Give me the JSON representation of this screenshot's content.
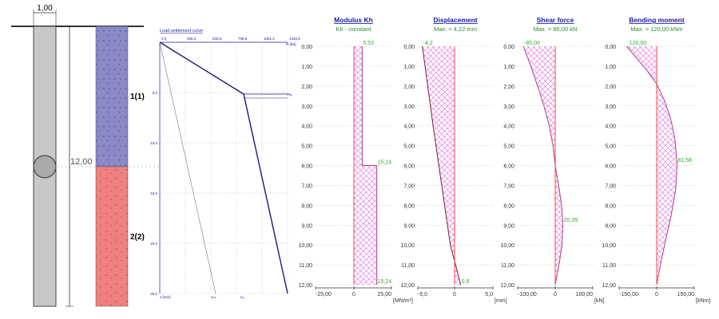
{
  "pile": {
    "diameter_label": "1,00",
    "length_label": "12,00"
  },
  "layers": [
    {
      "label": "1(1)",
      "color": "#8a8ac6"
    },
    {
      "label": "2(2)",
      "color": "#f07f7f"
    }
  ],
  "colors": {
    "hatch": "#dd66dd",
    "axis_line": "#ff4444",
    "value_label": "#33aa33",
    "title": "#1a1aa6",
    "lsc_line": "#1a1a7a",
    "depth_label": "#333333"
  },
  "depth_ticks": [
    "0,00",
    "1,00",
    "2,00",
    "3,00",
    "4,00",
    "5,00",
    "6,00",
    "7,00",
    "8,00",
    "9,00",
    "10,00",
    "11,00",
    "12,00"
  ],
  "lsc": {
    "title": "Load settlement curve",
    "x_ticks": [
      "0,0",
      "265,3",
      "530,6",
      "795,9",
      "1061,2",
      "1326,5"
    ],
    "x_unit": "R [kN]",
    "y_ticks": [
      "5,0",
      "10,0",
      "15,0",
      "20,0",
      "25,0"
    ],
    "y_unit": "s [mm]",
    "ry_label": "Ry",
    "marker_labels": [
      "sₗᵢₘ",
      "sₗₐ"
    ]
  },
  "chart_data": [
    {
      "type": "area",
      "title": "Modulus Kh",
      "subtitle": "Kh - constant",
      "xlim": [
        -25,
        25
      ],
      "x_ticks": [
        "-25,00",
        "0",
        "25,00"
      ],
      "unit": "[MN/m³]",
      "ylim": [
        0,
        12
      ],
      "ylabel": "",
      "points": [
        [
          5.53,
          0
        ],
        [
          5.53,
          6
        ],
        [
          15.24,
          6
        ],
        [
          15.24,
          12
        ]
      ],
      "labels": [
        {
          "text": "5,53",
          "x": 5.53,
          "y": 0
        },
        {
          "text": "15,24",
          "x": 15.24,
          "y": 6
        },
        {
          "text": "15,24",
          "x": 15.24,
          "y": 12
        }
      ]
    },
    {
      "type": "area",
      "title": "Displacement",
      "subtitle": "Max. = 4,22 mm",
      "xlim": [
        -5,
        5
      ],
      "x_ticks": [
        "-5,0",
        "0",
        "5,0"
      ],
      "unit": "[mm]",
      "ylim": [
        0,
        12
      ],
      "points": [
        [
          -4.2,
          0
        ],
        [
          -3.5,
          2
        ],
        [
          -2.8,
          4
        ],
        [
          -2.05,
          6
        ],
        [
          -1.3,
          8
        ],
        [
          -0.55,
          10
        ],
        [
          0.8,
          12
        ]
      ],
      "labels": [
        {
          "text": "-4,2",
          "x": -4.2,
          "y": 0
        },
        {
          "text": "0,8",
          "x": 0.8,
          "y": 12
        }
      ]
    },
    {
      "type": "area",
      "title": "Shear force",
      "subtitle": "Max. = 85,00 kN",
      "xlim": [
        -100,
        100
      ],
      "x_ticks": [
        "-100,00",
        "0",
        "100,00"
      ],
      "unit": "[kN]",
      "ylim": [
        0,
        12
      ],
      "points": [
        [
          -85,
          0
        ],
        [
          -65,
          1
        ],
        [
          -47,
          2
        ],
        [
          -30,
          3
        ],
        [
          -16,
          4
        ],
        [
          -6,
          5
        ],
        [
          0,
          6
        ],
        [
          9,
          7
        ],
        [
          17,
          8
        ],
        [
          20.39,
          8.9
        ],
        [
          18,
          10
        ],
        [
          10,
          11
        ],
        [
          0,
          12
        ]
      ],
      "labels": [
        {
          "text": "-85,00",
          "x": -85,
          "y": 0
        },
        {
          "text": "20,39",
          "x": 20.39,
          "y": 8.9
        }
      ]
    },
    {
      "type": "area",
      "title": "Bending moment",
      "subtitle": "Max. = 120,00 kNm",
      "xlim": [
        -150,
        150
      ],
      "x_ticks": [
        "-150,00",
        "0",
        "150,00"
      ],
      "unit": "[kNm]",
      "ylim": [
        0,
        12
      ],
      "points": [
        [
          -120,
          0
        ],
        [
          -80,
          0.6
        ],
        [
          -40,
          1.2
        ],
        [
          0,
          1.9
        ],
        [
          30,
          2.7
        ],
        [
          55,
          3.6
        ],
        [
          72,
          4.6
        ],
        [
          81.58,
          5.9
        ],
        [
          76,
          7.2
        ],
        [
          58,
          8.5
        ],
        [
          35,
          9.8
        ],
        [
          15,
          11
        ],
        [
          0,
          12
        ]
      ],
      "labels": [
        {
          "text": "-120,00",
          "x": -120,
          "y": 0
        },
        {
          "text": "81,58",
          "x": 81.58,
          "y": 5.9
        }
      ]
    }
  ]
}
